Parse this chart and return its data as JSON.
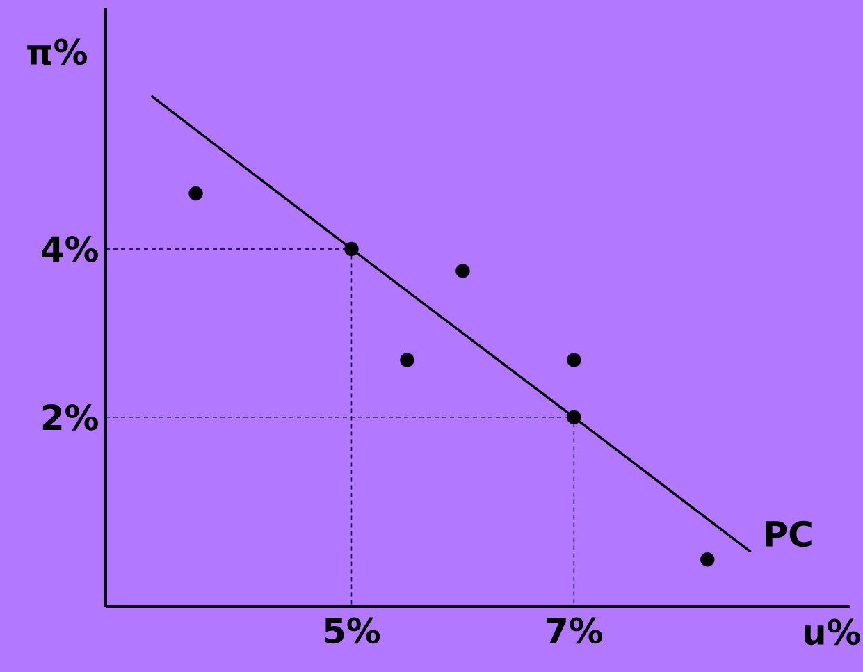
{
  "chart_data": {
    "type": "scatter",
    "xlabel": "u%",
    "ylabel": "π%",
    "xlim": [
      2.79,
      9.48
    ],
    "ylim": [
      -0.25,
      6.86
    ],
    "xticks": [
      {
        "value": 5,
        "label": "5%"
      },
      {
        "value": 7,
        "label": "7%"
      }
    ],
    "yticks": [
      {
        "value": 2,
        "label": "2%"
      },
      {
        "value": 4,
        "label": "4%"
      }
    ],
    "series": [
      {
        "type": "line",
        "line_style": "dashed",
        "marker": "none",
        "color": "#000000",
        "x": [
          2.79,
          5,
          5
        ],
        "values": [
          4,
          4,
          -0.25
        ]
      },
      {
        "type": "line",
        "line_style": "dashed",
        "marker": "none",
        "color": "#000000",
        "x": [
          2.79,
          7,
          7
        ],
        "values": [
          2,
          2,
          -0.25
        ]
      },
      {
        "type": "line",
        "line_style": "solid",
        "marker": "none",
        "name": "PC",
        "color": "#000000",
        "x": [
          3.2,
          5,
          7,
          8.59
        ],
        "values": [
          5.82,
          4,
          2,
          0.4
        ]
      },
      {
        "type": "scatter",
        "marker": "circle",
        "color": "#000000",
        "x": [
          3.6,
          5,
          6.0,
          5.5,
          7,
          7,
          8.2
        ],
        "values": [
          4.66,
          4,
          3.74,
          2.68,
          2.68,
          2.0,
          0.31
        ]
      }
    ]
  }
}
